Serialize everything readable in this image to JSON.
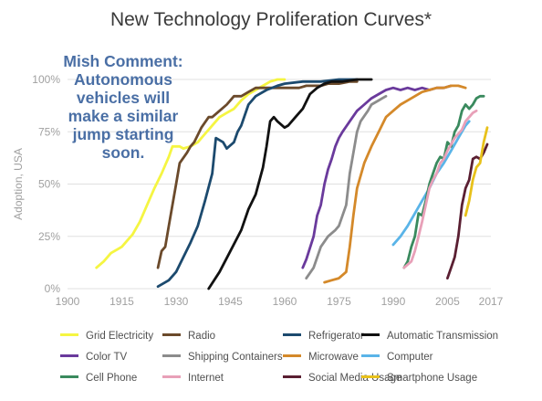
{
  "chart_data": {
    "type": "line",
    "title": "New Technology Proliferation Curves*",
    "ylabel": "Adoption, USA",
    "xlim": [
      1900,
      2017
    ],
    "ylim": [
      0,
      100
    ],
    "x_ticks": [
      "1900",
      "1915",
      "1930",
      "1945",
      "1960",
      "1975",
      "1990",
      "2005",
      "2017"
    ],
    "y_ticks": [
      "0%",
      "25%",
      "50%",
      "75%",
      "100%"
    ],
    "grid": "horizontal",
    "annotation": [
      "Mish Comment:",
      "Autonomous",
      "vehicles will",
      "make a similar",
      "jump starting",
      "soon."
    ],
    "series": [
      {
        "name": "Grid Electricity",
        "color": "#f5f542",
        "points": [
          [
            1908,
            10
          ],
          [
            1910,
            13
          ],
          [
            1912,
            17
          ],
          [
            1915,
            20
          ],
          [
            1918,
            26
          ],
          [
            1920,
            32
          ],
          [
            1922,
            40
          ],
          [
            1924,
            48
          ],
          [
            1926,
            55
          ],
          [
            1928,
            63
          ],
          [
            1929,
            68
          ],
          [
            1931,
            68
          ],
          [
            1932,
            67
          ],
          [
            1934,
            68
          ],
          [
            1936,
            70
          ],
          [
            1938,
            74
          ],
          [
            1940,
            78
          ],
          [
            1942,
            82
          ],
          [
            1944,
            84
          ],
          [
            1946,
            86
          ],
          [
            1948,
            90
          ],
          [
            1950,
            93
          ],
          [
            1952,
            95
          ],
          [
            1954,
            97
          ],
          [
            1956,
            99
          ],
          [
            1958,
            100
          ],
          [
            1960,
            100
          ]
        ]
      },
      {
        "name": "Radio",
        "color": "#6b4a2b",
        "points": [
          [
            1925,
            10
          ],
          [
            1926,
            18
          ],
          [
            1927,
            20
          ],
          [
            1928,
            30
          ],
          [
            1929,
            40
          ],
          [
            1930,
            50
          ],
          [
            1931,
            60
          ],
          [
            1933,
            65
          ],
          [
            1934,
            68
          ],
          [
            1935,
            70
          ],
          [
            1937,
            77
          ],
          [
            1939,
            82
          ],
          [
            1940,
            82
          ],
          [
            1942,
            85
          ],
          [
            1944,
            88
          ],
          [
            1946,
            92
          ],
          [
            1948,
            92
          ],
          [
            1950,
            94
          ],
          [
            1952,
            96
          ],
          [
            1954,
            96
          ],
          [
            1956,
            96
          ],
          [
            1958,
            96
          ],
          [
            1960,
            96
          ],
          [
            1962,
            96
          ],
          [
            1964,
            96
          ],
          [
            1966,
            97
          ],
          [
            1968,
            97
          ],
          [
            1970,
            97
          ],
          [
            1972,
            98
          ],
          [
            1975,
            98
          ],
          [
            1978,
            99
          ],
          [
            1980,
            99
          ]
        ]
      },
      {
        "name": "Refrigerator",
        "color": "#1c4a6e",
        "points": [
          [
            1925,
            1
          ],
          [
            1928,
            4
          ],
          [
            1930,
            8
          ],
          [
            1932,
            15
          ],
          [
            1934,
            22
          ],
          [
            1936,
            30
          ],
          [
            1938,
            42
          ],
          [
            1940,
            55
          ],
          [
            1941,
            72
          ],
          [
            1943,
            70
          ],
          [
            1944,
            67
          ],
          [
            1946,
            70
          ],
          [
            1947,
            75
          ],
          [
            1948,
            78
          ],
          [
            1950,
            88
          ],
          [
            1952,
            92
          ],
          [
            1955,
            95
          ],
          [
            1958,
            97
          ],
          [
            1960,
            98
          ],
          [
            1965,
            99
          ],
          [
            1970,
            99
          ],
          [
            1975,
            100
          ],
          [
            1980,
            100
          ]
        ]
      },
      {
        "name": "Automatic Transmission",
        "color": "#111111",
        "points": [
          [
            1939,
            0
          ],
          [
            1942,
            8
          ],
          [
            1945,
            18
          ],
          [
            1948,
            28
          ],
          [
            1950,
            38
          ],
          [
            1952,
            45
          ],
          [
            1954,
            58
          ],
          [
            1955,
            68
          ],
          [
            1956,
            80
          ],
          [
            1957,
            82
          ],
          [
            1958,
            80
          ],
          [
            1960,
            77
          ],
          [
            1961,
            78
          ],
          [
            1963,
            82
          ],
          [
            1965,
            86
          ],
          [
            1967,
            93
          ],
          [
            1969,
            96
          ],
          [
            1971,
            98
          ],
          [
            1973,
            99
          ],
          [
            1976,
            99
          ],
          [
            1980,
            100
          ],
          [
            1984,
            100
          ]
        ]
      },
      {
        "name": "Color TV",
        "color": "#6a3a9c",
        "points": [
          [
            1965,
            10
          ],
          [
            1966,
            14
          ],
          [
            1968,
            25
          ],
          [
            1969,
            35
          ],
          [
            1970,
            40
          ],
          [
            1971,
            50
          ],
          [
            1972,
            57
          ],
          [
            1973,
            62
          ],
          [
            1974,
            68
          ],
          [
            1975,
            72
          ],
          [
            1976,
            75
          ],
          [
            1978,
            80
          ],
          [
            1980,
            85
          ],
          [
            1982,
            88
          ],
          [
            1984,
            91
          ],
          [
            1986,
            93
          ],
          [
            1988,
            95
          ],
          [
            1990,
            96
          ],
          [
            1992,
            95
          ],
          [
            1994,
            96
          ],
          [
            1996,
            95
          ],
          [
            1998,
            96
          ],
          [
            2000,
            95
          ],
          [
            2002,
            96
          ],
          [
            2004,
            96
          ],
          [
            2006,
            97
          ]
        ]
      },
      {
        "name": "Shipping Containers",
        "color": "#8c8c8c",
        "points": [
          [
            1966,
            5
          ],
          [
            1968,
            10
          ],
          [
            1970,
            20
          ],
          [
            1972,
            25
          ],
          [
            1974,
            28
          ],
          [
            1975,
            30
          ],
          [
            1977,
            40
          ],
          [
            1978,
            55
          ],
          [
            1979,
            65
          ],
          [
            1980,
            75
          ],
          [
            1981,
            80
          ],
          [
            1983,
            85
          ],
          [
            1984,
            88
          ],
          [
            1986,
            90
          ],
          [
            1987,
            91
          ],
          [
            1988,
            92
          ]
        ]
      },
      {
        "name": "Microwave",
        "color": "#d4892a",
        "points": [
          [
            1971,
            3
          ],
          [
            1973,
            4
          ],
          [
            1975,
            5
          ],
          [
            1977,
            8
          ],
          [
            1978,
            20
          ],
          [
            1979,
            35
          ],
          [
            1980,
            48
          ],
          [
            1982,
            60
          ],
          [
            1984,
            68
          ],
          [
            1986,
            75
          ],
          [
            1988,
            82
          ],
          [
            1990,
            85
          ],
          [
            1992,
            88
          ],
          [
            1994,
            90
          ],
          [
            1996,
            92
          ],
          [
            1998,
            94
          ],
          [
            2000,
            95
          ],
          [
            2002,
            96
          ],
          [
            2004,
            96
          ],
          [
            2006,
            97
          ],
          [
            2008,
            97
          ],
          [
            2010,
            96
          ]
        ]
      },
      {
        "name": "Computer",
        "color": "#5ab4e8",
        "points": [
          [
            1990,
            21
          ],
          [
            1992,
            25
          ],
          [
            1994,
            30
          ],
          [
            1996,
            36
          ],
          [
            1998,
            42
          ],
          [
            2000,
            48
          ],
          [
            2002,
            55
          ],
          [
            2004,
            60
          ],
          [
            2006,
            66
          ],
          [
            2008,
            72
          ],
          [
            2010,
            78
          ],
          [
            2011,
            80
          ]
        ]
      },
      {
        "name": "Cell Phone",
        "color": "#3a8a5e",
        "points": [
          [
            1993,
            10
          ],
          [
            1994,
            13
          ],
          [
            1995,
            20
          ],
          [
            1996,
            25
          ],
          [
            1997,
            36
          ],
          [
            1998,
            35
          ],
          [
            1999,
            42
          ],
          [
            2000,
            50
          ],
          [
            2001,
            55
          ],
          [
            2002,
            60
          ],
          [
            2003,
            63
          ],
          [
            2004,
            62
          ],
          [
            2005,
            70
          ],
          [
            2006,
            68
          ],
          [
            2007,
            75
          ],
          [
            2008,
            78
          ],
          [
            2009,
            85
          ],
          [
            2010,
            88
          ],
          [
            2011,
            86
          ],
          [
            2012,
            88
          ],
          [
            2013,
            91
          ],
          [
            2014,
            92
          ],
          [
            2015,
            92
          ]
        ]
      },
      {
        "name": "Internet",
        "color": "#e8a0b8",
        "points": [
          [
            1993,
            10
          ],
          [
            1995,
            13
          ],
          [
            1996,
            18
          ],
          [
            1997,
            25
          ],
          [
            1998,
            32
          ],
          [
            1999,
            40
          ],
          [
            2000,
            48
          ],
          [
            2001,
            52
          ],
          [
            2002,
            55
          ],
          [
            2003,
            60
          ],
          [
            2004,
            62
          ],
          [
            2005,
            66
          ],
          [
            2006,
            69
          ],
          [
            2007,
            72
          ],
          [
            2008,
            74
          ],
          [
            2009,
            76
          ],
          [
            2010,
            80
          ],
          [
            2011,
            82
          ],
          [
            2012,
            84
          ],
          [
            2013,
            85
          ]
        ]
      },
      {
        "name": "Social Media Usage",
        "color": "#5a1f32",
        "points": [
          [
            2005,
            5
          ],
          [
            2006,
            10
          ],
          [
            2007,
            15
          ],
          [
            2008,
            25
          ],
          [
            2009,
            40
          ],
          [
            2010,
            48
          ],
          [
            2011,
            52
          ],
          [
            2012,
            62
          ],
          [
            2013,
            63
          ],
          [
            2014,
            62
          ],
          [
            2015,
            65
          ],
          [
            2016,
            69
          ]
        ]
      },
      {
        "name": "Smartphone Usage",
        "color": "#e8c11a",
        "points": [
          [
            2010,
            35
          ],
          [
            2011,
            42
          ],
          [
            2012,
            52
          ],
          [
            2013,
            58
          ],
          [
            2014,
            60
          ],
          [
            2015,
            70
          ],
          [
            2016,
            77
          ]
        ]
      }
    ]
  }
}
